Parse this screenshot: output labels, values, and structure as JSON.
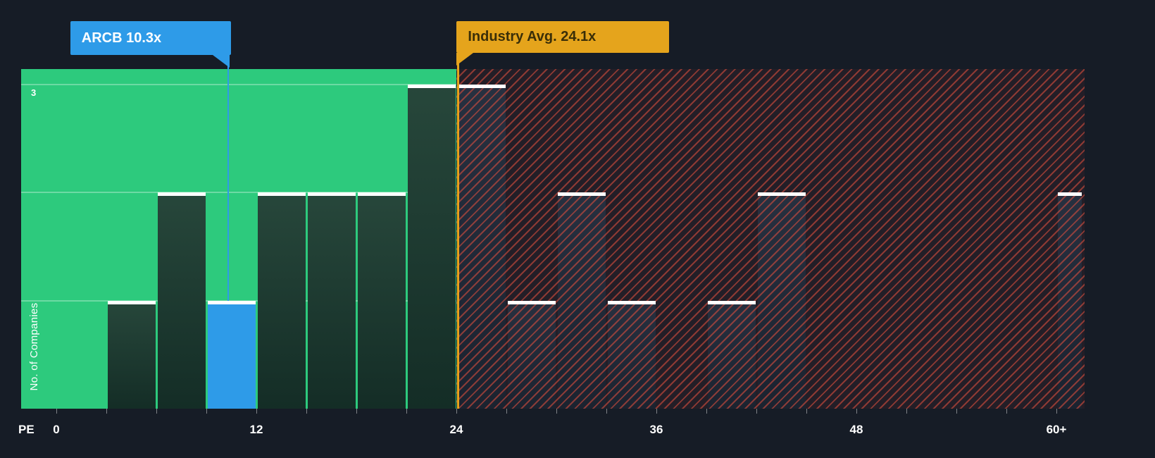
{
  "colors": {
    "background": "#161C26",
    "zone_green": "#2DCA7D",
    "bar_green_top": "#27473B",
    "bar_green_bottom": "#142D26",
    "bar_red_top": "#273040",
    "bar_red_bottom": "#1B2330",
    "highlight_blue": "#2E9BE8",
    "industry_orange": "#E5A41C",
    "hatch_red": "#E6503E",
    "cap_white": "#FFFFFF",
    "flag_text_light": "#FFFFFF",
    "flag_text_dark": "#3A2E08",
    "axis_text": "#FFFFFF"
  },
  "chart_data": {
    "type": "bar",
    "subtype": "histogram",
    "xlabel": "PE",
    "ylabel": "No. of Companies",
    "x_ticks": [
      "0",
      "12",
      "24",
      "36",
      "48",
      "60+"
    ],
    "x_tick_values": [
      0,
      12,
      24,
      36,
      48,
      60
    ],
    "y_ticks": [
      {
        "value": 3,
        "label": "3"
      }
    ],
    "y_gridlines": [
      1,
      2,
      3
    ],
    "ylim": [
      0,
      3.15
    ],
    "xlim": [
      -2.1,
      61.7
    ],
    "bin_width": 3,
    "grid": true,
    "legend": false,
    "bins": [
      {
        "from": 0,
        "to": 3,
        "count": 0
      },
      {
        "from": 3,
        "to": 6,
        "count": 1
      },
      {
        "from": 6,
        "to": 9,
        "count": 2
      },
      {
        "from": 9,
        "to": 12,
        "count": 1,
        "highlight": "ARCB"
      },
      {
        "from": 12,
        "to": 15,
        "count": 2
      },
      {
        "from": 15,
        "to": 18,
        "count": 2
      },
      {
        "from": 18,
        "to": 21,
        "count": 2
      },
      {
        "from": 21,
        "to": 24,
        "count": 3
      },
      {
        "from": 24,
        "to": 27,
        "count": 3
      },
      {
        "from": 27,
        "to": 30,
        "count": 1
      },
      {
        "from": 30,
        "to": 33,
        "count": 2
      },
      {
        "from": 33,
        "to": 36,
        "count": 1
      },
      {
        "from": 36,
        "to": 39,
        "count": 0
      },
      {
        "from": 39,
        "to": 42,
        "count": 1
      },
      {
        "from": 42,
        "to": 45,
        "count": 2
      },
      {
        "from": 45,
        "to": 48,
        "count": 0
      },
      {
        "from": 48,
        "to": 51,
        "count": 0
      },
      {
        "from": 51,
        "to": 54,
        "count": 0
      },
      {
        "from": 54,
        "to": 57,
        "count": 0
      },
      {
        "from": 57,
        "to": 60,
        "count": 0
      },
      {
        "from": 60,
        "to": 61.6,
        "count": 2,
        "label": "60+"
      }
    ],
    "company": {
      "ticker": "ARCB",
      "pe": 10.3,
      "label": "ARCB 10.3x"
    },
    "industry": {
      "value": 24.1,
      "label": "Industry Avg. 24.1x"
    },
    "zones": {
      "below_avg_end": 24
    }
  }
}
